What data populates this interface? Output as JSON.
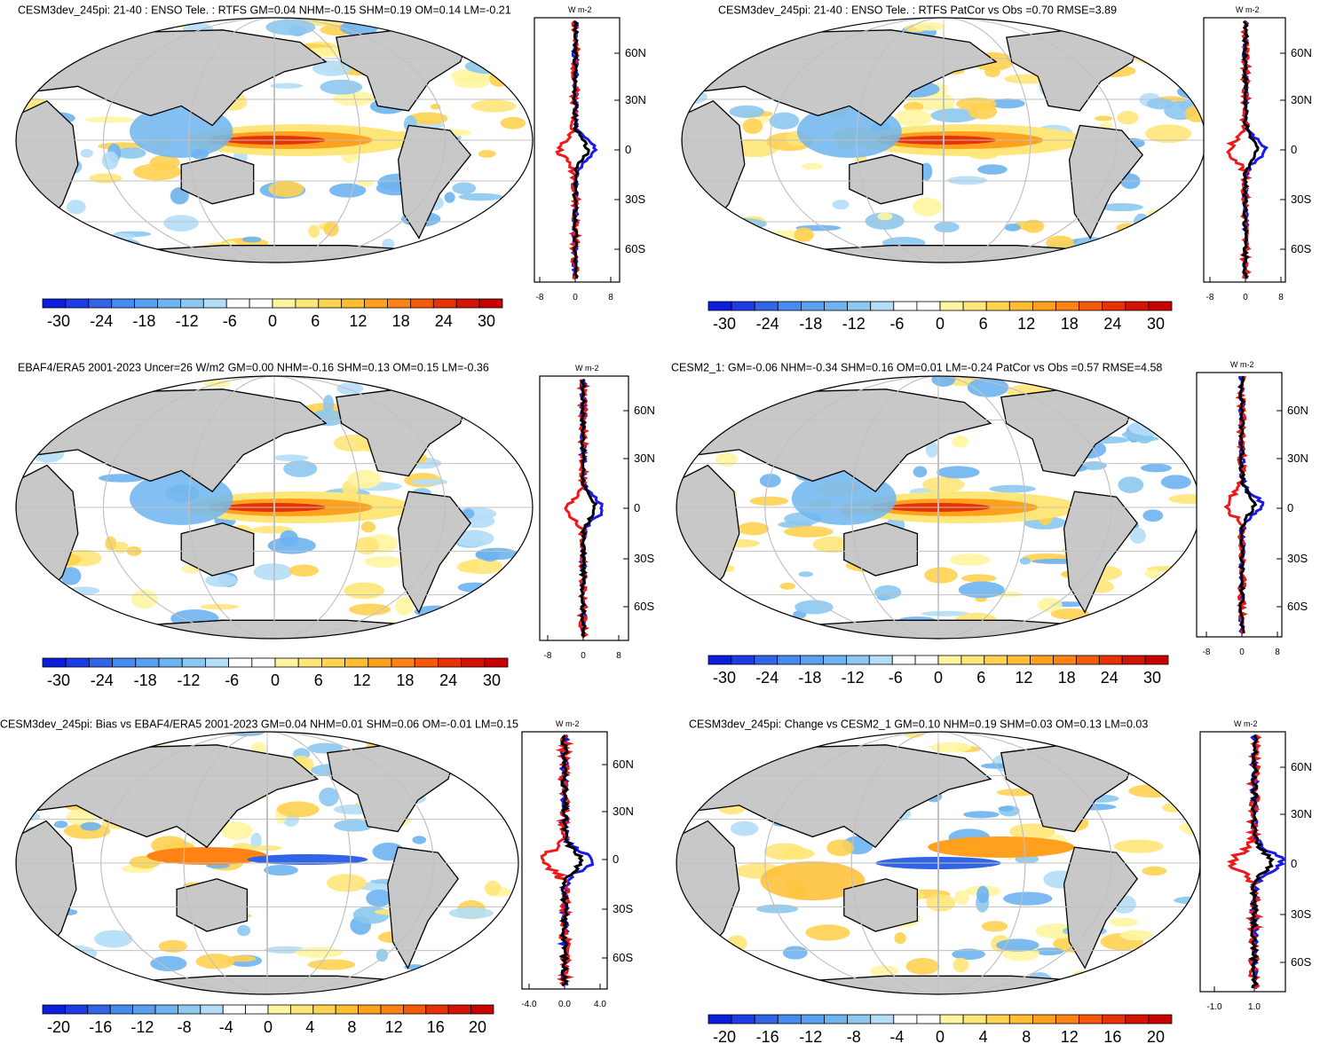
{
  "colors": {
    "land": "#c8c8c8",
    "ocean": "#ffffff",
    "grid": "#c0c0c0",
    "blue_line": "#1a1aee",
    "red_line": "#ee1a1a",
    "black_line": "#000000"
  },
  "colorbars": {
    "wide": {
      "colors": [
        "#0a1edc",
        "#1e3ce6",
        "#3264e6",
        "#468cf0",
        "#5aa0f0",
        "#6eb4f0",
        "#8cc8f0",
        "#b4def8",
        "#ffffff",
        "#ffffff",
        "#fff5a0",
        "#ffe678",
        "#ffd250",
        "#ffbe32",
        "#ffa01e",
        "#ff8214",
        "#f55a0a",
        "#e63205",
        "#d21405",
        "#c80000"
      ],
      "labels": [
        "-30",
        "-24",
        "-18",
        "-12",
        "-6",
        "0",
        "6",
        "12",
        "18",
        "24",
        "30"
      ]
    },
    "narrow": {
      "colors": [
        "#0a1edc",
        "#1e3ce6",
        "#3264e6",
        "#468cf0",
        "#5aa0f0",
        "#6eb4f0",
        "#8cc8f0",
        "#b4def8",
        "#ffffff",
        "#ffffff",
        "#fff5a0",
        "#ffe678",
        "#ffd250",
        "#ffbe32",
        "#ffa01e",
        "#ff8214",
        "#f55a0a",
        "#e63205",
        "#d21405",
        "#c80000"
      ],
      "labels": [
        "-20",
        "-16",
        "-12",
        "-8",
        "-4",
        "0",
        "4",
        "8",
        "12",
        "16",
        "20"
      ]
    }
  },
  "panels": [
    {
      "title": "CESM3dev_245pi: 21-40 : ENSO Tele. : RTFS GM=0.04 NHM=-0.15 SHM=0.19 OM=0.14 LM=-0.21",
      "zonal_units": "W m-2",
      "zonal_ticks": [
        "-8",
        "0",
        "8"
      ],
      "lat_labels": [
        "60N",
        "30N",
        "0",
        "30S",
        "60S"
      ]
    },
    {
      "title": "CESM3dev_245pi: 21-40 : ENSO Tele. : RTFS PatCor vs Obs =0.70 RMSE=3.89",
      "zonal_units": "W m-2",
      "zonal_ticks": [
        "-8",
        "0",
        "8"
      ],
      "lat_labels": [
        "60N",
        "30N",
        "0",
        "30S",
        "60S"
      ]
    },
    {
      "title": "EBAF4/ERA5 2001-2023 Uncer=26 W/m2 GM=0.00 NHM=-0.16 SHM=0.13 OM=0.15 LM=-0.36",
      "zonal_units": "W m-2",
      "zonal_ticks": [
        "-8",
        "0",
        "8"
      ],
      "lat_labels": [
        "60N",
        "30N",
        "0",
        "30S",
        "60S"
      ]
    },
    {
      "title": "CESM2_1: GM=-0.06 NHM=-0.34 SHM=0.16 OM=0.01 LM=-0.24 PatCor vs Obs =0.57 RMSE=4.58",
      "zonal_units": "W m-2",
      "zonal_ticks": [
        "-8",
        "0",
        "8"
      ],
      "lat_labels": [
        "60N",
        "30N",
        "0",
        "30S",
        "60S"
      ]
    },
    {
      "title": "CESM3dev_245pi: Bias vs EBAF4/ERA5 2001-2023 GM=0.04 NHM=0.01 SHM=0.06 OM=-0.01 LM=0.15",
      "zonal_units": "W m-2",
      "zonal_ticks": [
        "-4.0",
        "0.0",
        "4.0"
      ],
      "lat_labels": [
        "60N",
        "30N",
        "0",
        "30S",
        "60S"
      ]
    },
    {
      "title": "CESM3dev_245pi: Change vs CESM2_1 GM=0.10 NHM=0.19 SHM=0.03 OM=0.13 LM=0.03",
      "zonal_units": "W m-2",
      "zonal_ticks": [
        "-1.0",
        "1.0"
      ],
      "lat_labels": [
        "60N",
        "30N",
        "0",
        "30S",
        "60S"
      ]
    }
  ]
}
